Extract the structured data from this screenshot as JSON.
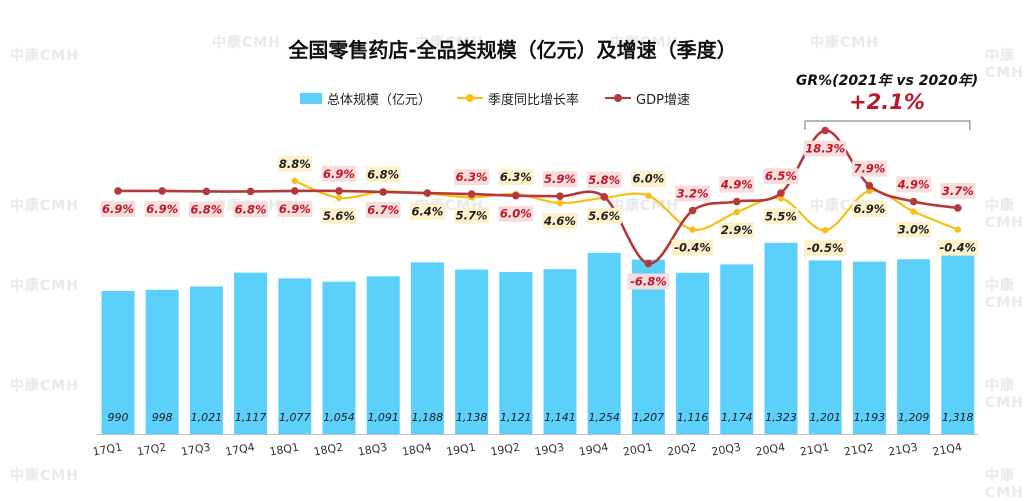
{
  "watermark": "中康CMH",
  "chart_data": {
    "type": "bar",
    "title": "全国零售药店-全品类规模（亿元）及增速（季度）",
    "categories": [
      "17Q1",
      "17Q2",
      "17Q3",
      "17Q4",
      "18Q1",
      "18Q2",
      "18Q3",
      "18Q4",
      "19Q1",
      "19Q2",
      "19Q3",
      "19Q4",
      "20Q1",
      "20Q2",
      "20Q3",
      "20Q4",
      "21Q1",
      "21Q2",
      "21Q3",
      "21Q4"
    ],
    "series": [
      {
        "name": "总体规模（亿元）",
        "type": "bar",
        "color": "#5bd0fb",
        "values": [
          990,
          998,
          1021,
          1117,
          1077,
          1054,
          1091,
          1188,
          1138,
          1121,
          1141,
          1254,
          1207,
          1116,
          1174,
          1323,
          1201,
          1193,
          1209,
          1318
        ],
        "labels": [
          "990",
          "998",
          "1,021",
          "1,117",
          "1,077",
          "1,054",
          "1,091",
          "1,188",
          "1,138",
          "1,121",
          "1,141",
          "1,254",
          "1,207",
          "1,116",
          "1,174",
          "1,323",
          "1,201",
          "1,193",
          "1,209",
          "1,318"
        ]
      },
      {
        "name": "季度同比增长率",
        "type": "line",
        "color": "#f5c013",
        "values": [
          null,
          null,
          null,
          null,
          8.8,
          5.6,
          6.8,
          6.4,
          5.7,
          6.3,
          4.6,
          5.6,
          6.0,
          -0.4,
          2.9,
          5.5,
          -0.5,
          6.9,
          3.0,
          -0.4
        ],
        "labels": [
          "",
          "",
          "",
          "",
          "8.8%",
          "5.6%",
          "6.8%",
          "6.4%",
          "5.7%",
          "6.3%",
          "4.6%",
          "5.6%",
          "6.0%",
          "-0.4%",
          "2.9%",
          "5.5%",
          "-0.5%",
          "6.9%",
          "3.0%",
          "-0.4%"
        ]
      },
      {
        "name": "GDP增速",
        "type": "line",
        "color": "#b5393c",
        "values": [
          6.9,
          6.9,
          6.8,
          6.8,
          6.9,
          6.9,
          6.7,
          6.5,
          6.3,
          6.0,
          5.9,
          5.8,
          -6.8,
          3.2,
          4.9,
          6.5,
          18.3,
          7.9,
          4.9,
          3.7
        ],
        "labels": [
          "6.9%",
          "6.9%",
          "6.8%",
          "6.8%",
          "6.9%",
          "6.9%",
          "6.7%",
          "6.5%",
          "6.3%",
          "6.0%",
          "5.9%",
          "5.8%",
          "-6.8%",
          "3.2%",
          "4.9%",
          "6.5%",
          "18.3%",
          "7.9%",
          "4.9%",
          "3.7%"
        ]
      }
    ],
    "legend_position": "top",
    "grid": false,
    "annotation": {
      "title": "GR%(2021年 vs 2020年)",
      "value": "+2.1%"
    }
  }
}
